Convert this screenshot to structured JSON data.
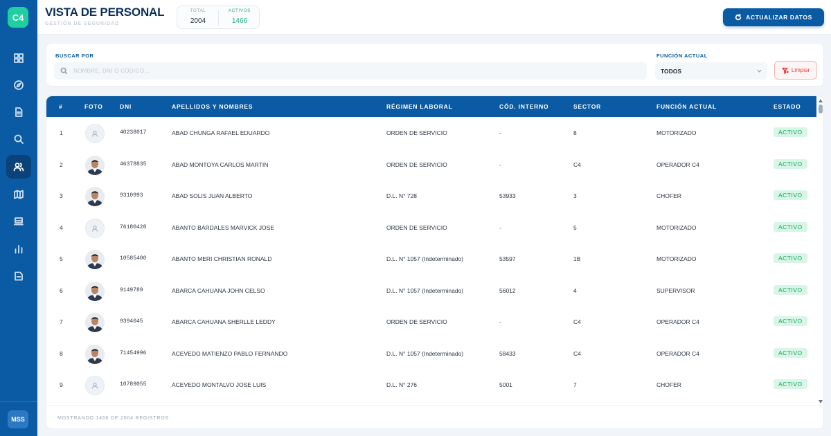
{
  "sidebar": {
    "logo": "C4",
    "items": [
      {
        "icon": "dashboard-icon"
      },
      {
        "icon": "compass-icon"
      },
      {
        "icon": "document-icon"
      },
      {
        "icon": "search-icon"
      },
      {
        "icon": "users-icon",
        "active": true
      },
      {
        "icon": "map-icon"
      },
      {
        "icon": "vehicle-icon"
      },
      {
        "icon": "bar-chart-icon"
      },
      {
        "icon": "report-icon"
      }
    ],
    "user_initials": "MSS"
  },
  "header": {
    "title": "VISTA DE PERSONAL",
    "subtitle": "GESTIÓN DE SEGURIDAD",
    "stats": {
      "total_label": "TOTAL",
      "total_value": "2004",
      "active_label": "ACTIVOS",
      "active_value": "1466"
    },
    "refresh_button": "ACTUALIZAR DATOS"
  },
  "filters": {
    "search_label": "BUSCAR POR",
    "search_placeholder": "NOMBRE, DNI O CÓDIGO...",
    "function_label": "FUNCIÓN ACTUAL",
    "function_value": "TODOS",
    "clear_button": "Limpiar"
  },
  "table": {
    "columns": [
      "#",
      "FOTO",
      "DNI",
      "APELLIDOS Y NOMBRES",
      "RÉGIMEN LABORAL",
      "CÓD. INTERNO",
      "SECTOR",
      "FUNCIÓN ACTUAL",
      "ESTADO"
    ],
    "rows": [
      {
        "n": "1",
        "photo": false,
        "dni": "40238017",
        "name": "ABAD CHUNGA RAFAEL EDUARDO",
        "regimen": "ORDEN DE SERVICIO",
        "code": "-",
        "sector": "8",
        "funcion": "MOTORIZADO",
        "estado": "ACTIVO"
      },
      {
        "n": "2",
        "photo": true,
        "dni": "46378835",
        "name": "ABAD MONTOYA CARLOS MARTIN",
        "regimen": "ORDEN DE SERVICIO",
        "code": "-",
        "sector": "C4",
        "funcion": "OPERADOR C4",
        "estado": "ACTIVO"
      },
      {
        "n": "3",
        "photo": true,
        "dni": "9310993",
        "name": "ABAD SOLIS JUAN ALBERTO",
        "regimen": "D.L. N° 728",
        "code": "53933",
        "sector": "3",
        "funcion": "CHOFER",
        "estado": "ACTIVO"
      },
      {
        "n": "4",
        "photo": false,
        "dni": "76180428",
        "name": "ABANTO BARDALES MARVICK JOSE",
        "regimen": "ORDEN DE SERVICIO",
        "code": "-",
        "sector": "5",
        "funcion": "MOTORIZADO",
        "estado": "ACTIVO"
      },
      {
        "n": "5",
        "photo": true,
        "dni": "10585400",
        "name": "ABANTO MERI CHRISTIAN RONALD",
        "regimen": "D.L. N° 1057 (Indeterminado)",
        "code": "53597",
        "sector": "1B",
        "funcion": "MOTORIZADO",
        "estado": "ACTIVO"
      },
      {
        "n": "6",
        "photo": true,
        "dni": "9149789",
        "name": "ABARCA CAHUANA JOHN CELSO",
        "regimen": "D.L. N° 1057 (Indeterminado)",
        "code": "56012",
        "sector": "4",
        "funcion": "SUPERVISOR",
        "estado": "ACTIVO"
      },
      {
        "n": "7",
        "photo": true,
        "dni": "9394045",
        "name": "ABARCA CAHUANA SHERLLE LEDDY",
        "regimen": "ORDEN DE SERVICIO",
        "code": "-",
        "sector": "C4",
        "funcion": "OPERADOR C4",
        "estado": "ACTIVO"
      },
      {
        "n": "8",
        "photo": true,
        "dni": "71454996",
        "name": "ACEVEDO MATIENZO PABLO FERNANDO",
        "regimen": "D.L. N° 1057 (Indeterminado)",
        "code": "58433",
        "sector": "C4",
        "funcion": "OPERADOR C4",
        "estado": "ACTIVO"
      },
      {
        "n": "9",
        "photo": false,
        "dni": "10789055",
        "name": "ACEVEDO MONTALVO JOSE LUIS",
        "regimen": "D.L. N° 276",
        "code": "5001",
        "sector": "7",
        "funcion": "CHOFER",
        "estado": "ACTIVO"
      }
    ],
    "footer": "MOSTRANDO 1466 DE 2004 REGISTROS"
  },
  "colors": {
    "primary": "#0a5ba3",
    "accent": "#1fcf9f",
    "active_badge_bg": "#d8f6e7",
    "active_badge_text": "#17a05d",
    "danger": "#e53e3e"
  }
}
